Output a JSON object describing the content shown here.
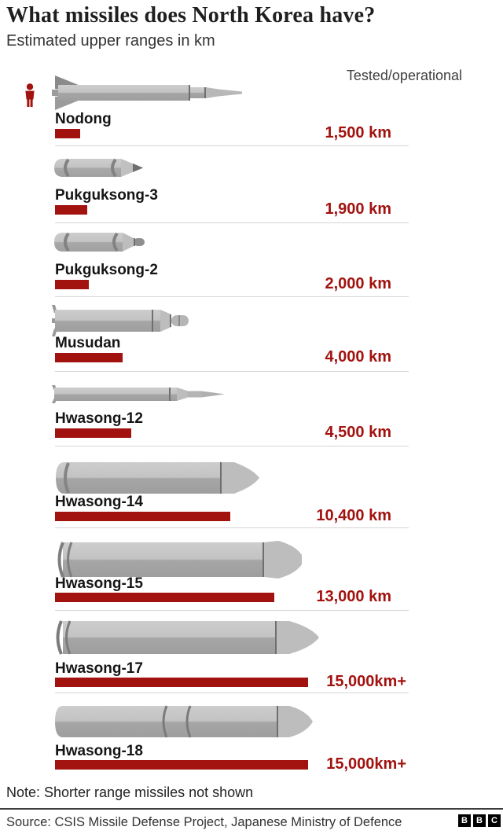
{
  "header": {
    "title": "What missiles does North Korea have?",
    "subtitle": "Estimated upper ranges in km",
    "column_label": "Tested/operational"
  },
  "chart_data": {
    "type": "bar",
    "orientation": "horizontal",
    "unit": "km",
    "xlim": [
      0,
      15000
    ],
    "bar_color": "#a2120f",
    "value_column_header": "Tested/operational",
    "categories": [
      "Nodong",
      "Pukguksong-3",
      "Pukguksong-2",
      "Musudan",
      "Hwasong-12",
      "Hwasong-14",
      "Hwasong-15",
      "Hwasong-17",
      "Hwasong-18"
    ],
    "values": [
      1500,
      1900,
      2000,
      4000,
      4500,
      10400,
      13000,
      15000,
      15000
    ],
    "missiles": [
      {
        "name": "Nodong",
        "range_km": 1500,
        "label": "1,500 km"
      },
      {
        "name": "Pukguksong-3",
        "range_km": 1900,
        "label": "1,900 km"
      },
      {
        "name": "Pukguksong-2",
        "range_km": 2000,
        "label": "2,000 km"
      },
      {
        "name": "Musudan",
        "range_km": 4000,
        "label": "4,000 km"
      },
      {
        "name": "Hwasong-12",
        "range_km": 4500,
        "label": "4,500 km"
      },
      {
        "name": "Hwasong-14",
        "range_km": 10400,
        "label": "10,400 km"
      },
      {
        "name": "Hwasong-15",
        "range_km": 13000,
        "label": "13,000 km"
      },
      {
        "name": "Hwasong-17",
        "range_km": 15000,
        "label": "15,000km+"
      },
      {
        "name": "Hwasong-18",
        "range_km": 15000,
        "label": "15,000km+"
      }
    ],
    "icons": [
      "person-scale-icon",
      "missile-illustration"
    ]
  },
  "footer": {
    "note": "Note: Shorter range missiles not shown",
    "source": "Source: CSIS Missile Defense Project, Japanese Ministry of Defence",
    "logo": {
      "b1": "B",
      "b2": "B",
      "b3": "C"
    }
  },
  "colors": {
    "accent_red": "#a2120f",
    "missile_gray": "#bfbfbf",
    "divider": "#d5d5d5"
  }
}
